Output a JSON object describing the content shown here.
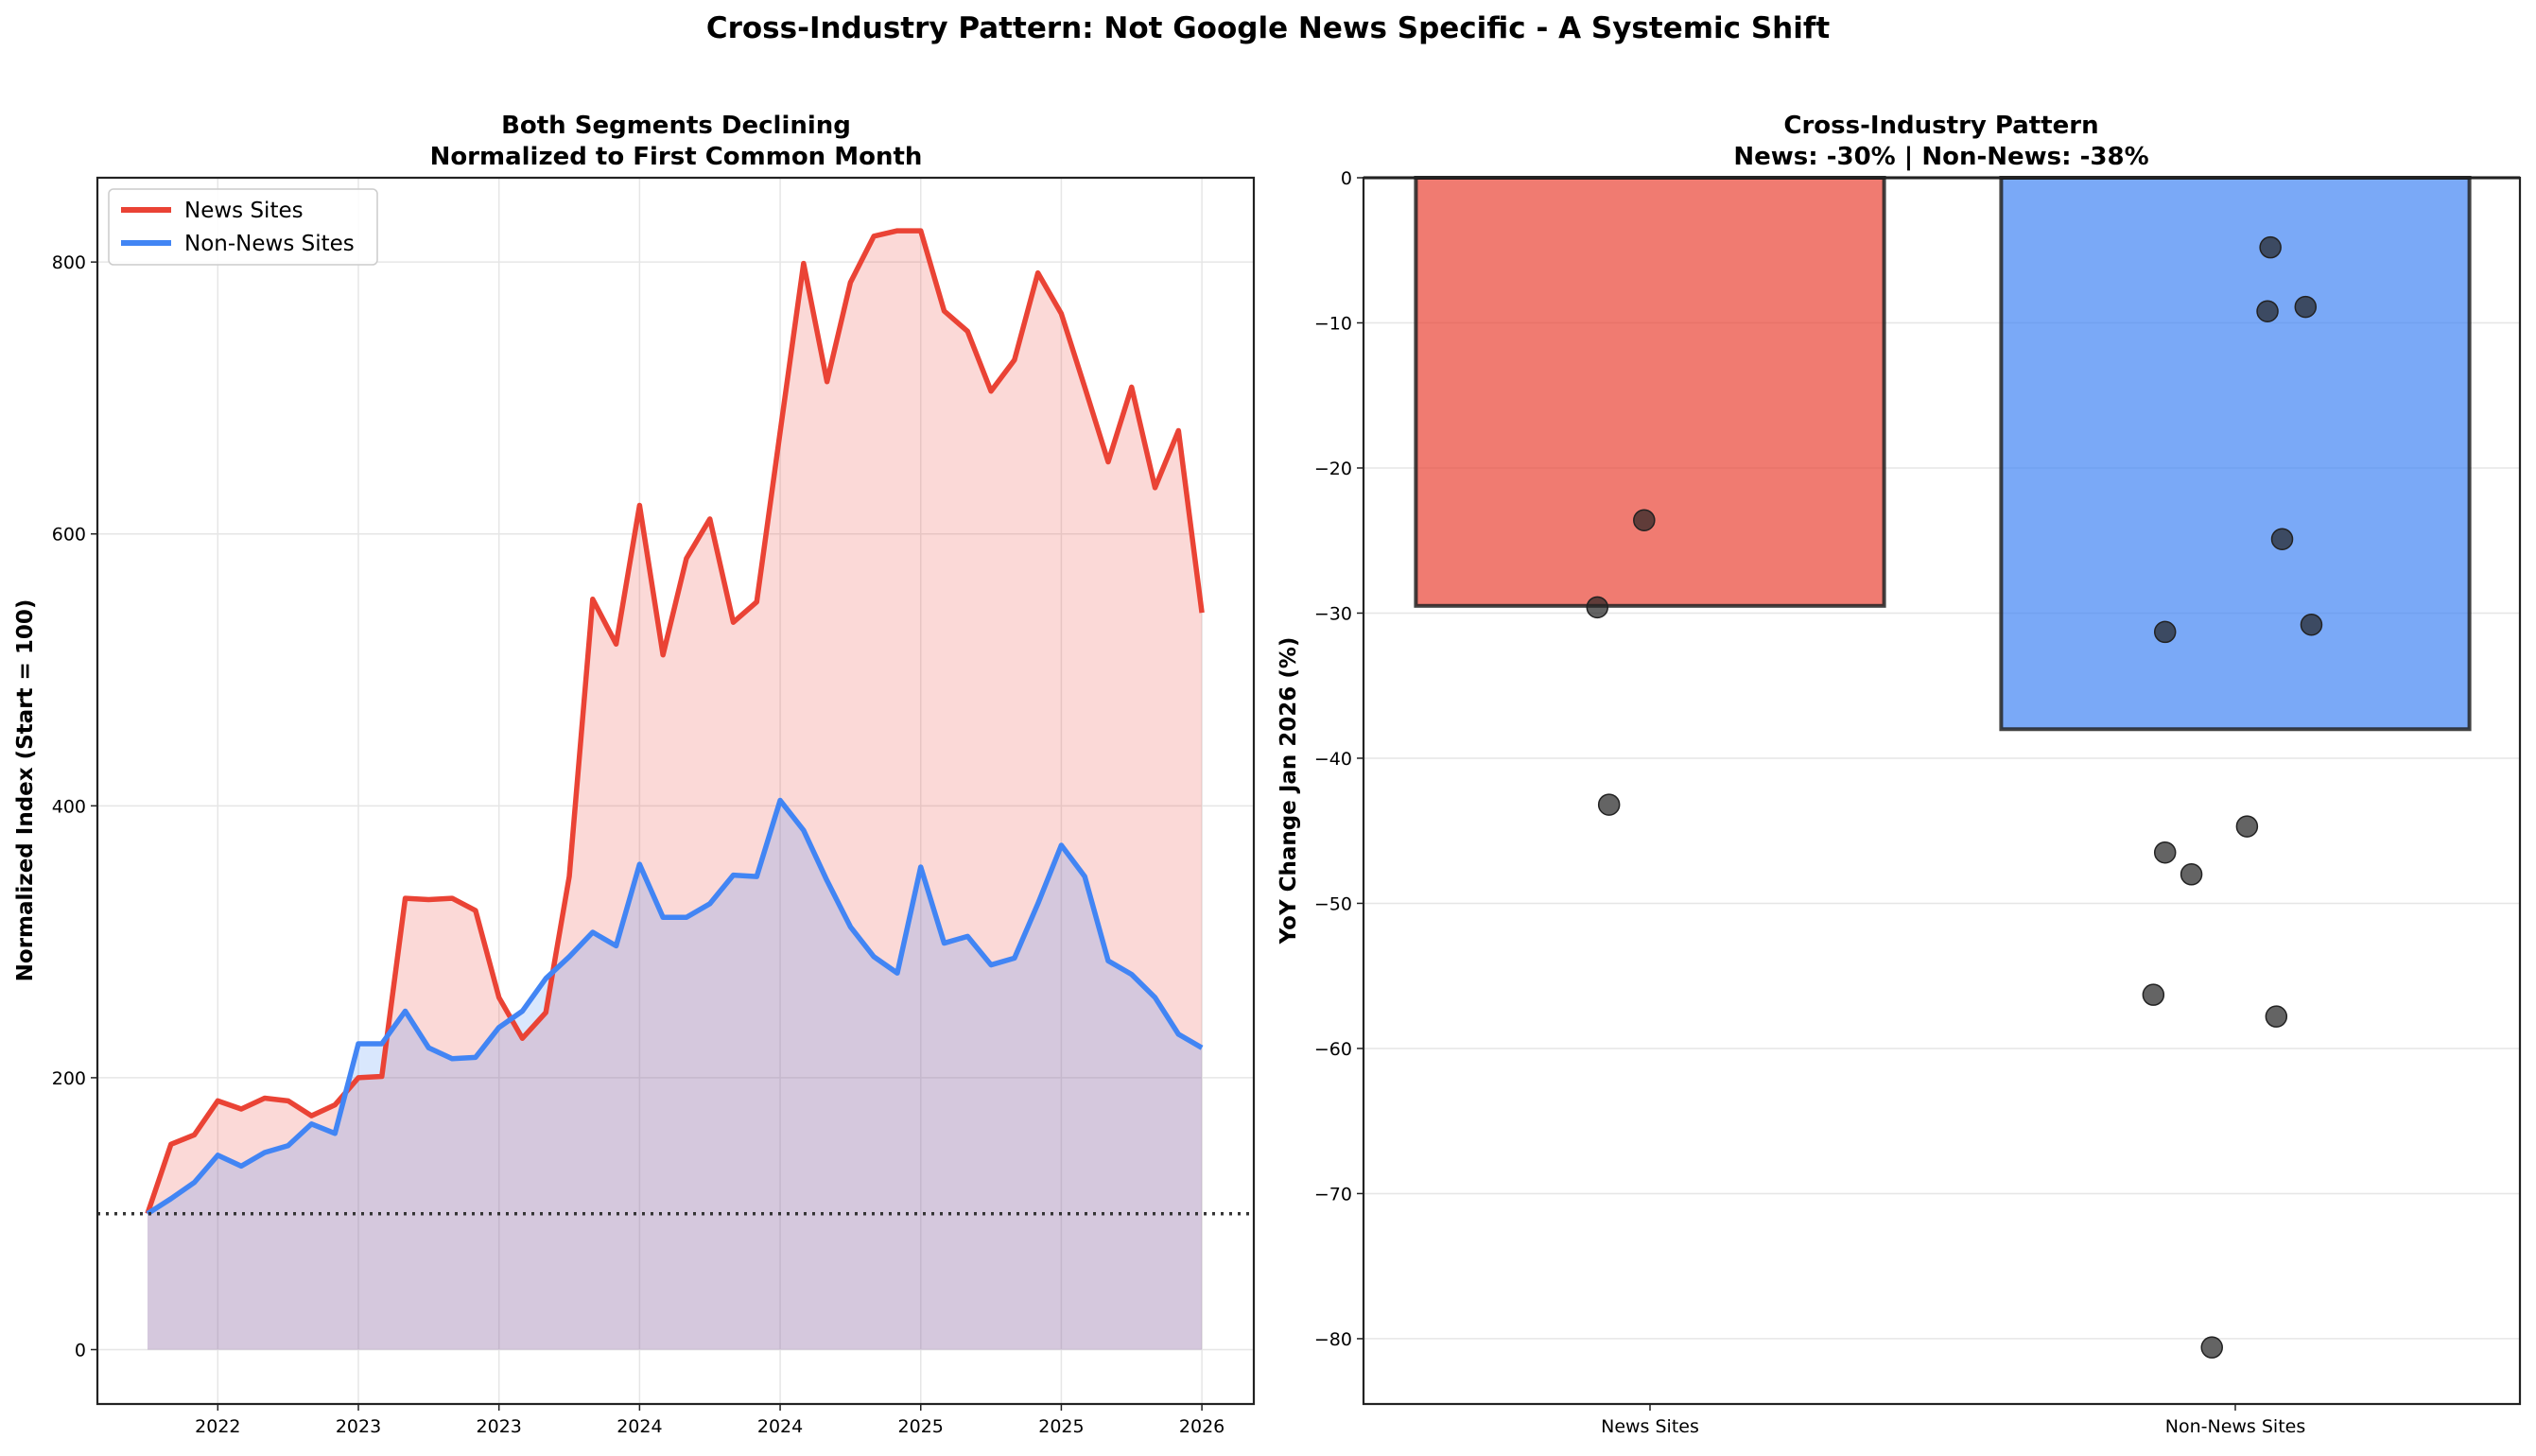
{
  "suptitle": "Cross-Industry Pattern: Not Google News Specific - A Systemic Shift",
  "chart_data": [
    {
      "type": "area",
      "title_line1": "Both Segments Declining",
      "title_line2": "Normalized to First Common Month",
      "xlabel": "",
      "ylabel": "Normalized Index (Start = 100)",
      "ylim": [
        -40,
        862
      ],
      "yticks": [
        0,
        200,
        400,
        600,
        800
      ],
      "xticks": [
        {
          "date": "2022-07",
          "label": "2022"
        },
        {
          "date": "2023-01",
          "label": "2023"
        },
        {
          "date": "2023-07",
          "label": "2023"
        },
        {
          "date": "2024-01",
          "label": "2024"
        },
        {
          "date": "2024-07",
          "label": "2024"
        },
        {
          "date": "2025-01",
          "label": "2025"
        },
        {
          "date": "2025-07",
          "label": "2025"
        },
        {
          "date": "2026-01",
          "label": "2026"
        }
      ],
      "grid": true,
      "legend_position": "top-left",
      "reference_line": 100,
      "x": [
        "2022-04",
        "2022-05",
        "2022-06",
        "2022-07",
        "2022-08",
        "2022-09",
        "2022-10",
        "2022-11",
        "2022-12",
        "2023-01",
        "2023-02",
        "2023-03",
        "2023-04",
        "2023-05",
        "2023-06",
        "2023-07",
        "2023-08",
        "2023-09",
        "2023-10",
        "2023-11",
        "2023-12",
        "2024-01",
        "2024-02",
        "2024-03",
        "2024-04",
        "2024-05",
        "2024-06",
        "2024-07",
        "2024-08",
        "2024-09",
        "2024-10",
        "2024-11",
        "2024-12",
        "2025-01",
        "2025-02",
        "2025-03",
        "2025-04",
        "2025-05",
        "2025-06",
        "2025-07",
        "2025-08",
        "2025-09",
        "2025-10",
        "2025-11",
        "2025-12",
        "2026-01"
      ],
      "series": [
        {
          "name": "News Sites",
          "color": "#ea4335",
          "values": [
            100,
            151,
            158,
            183,
            177,
            185,
            183,
            172,
            180,
            200,
            201,
            332,
            331,
            332,
            323,
            259,
            229,
            248,
            348,
            552,
            519,
            621,
            511,
            582,
            611,
            535,
            550,
            675,
            799,
            712,
            785,
            819,
            823,
            823,
            764,
            749,
            705,
            728,
            792,
            762,
            708,
            653,
            708,
            634,
            676,
            542
          ]
        },
        {
          "name": "Non-News Sites",
          "color": "#4285f4",
          "values": [
            100,
            111,
            123,
            143,
            135,
            145,
            150,
            166,
            159,
            225,
            225,
            249,
            222,
            214,
            215,
            237,
            249,
            273,
            289,
            307,
            297,
            357,
            318,
            318,
            328,
            349,
            348,
            404,
            382,
            345,
            311,
            289,
            277,
            355,
            299,
            304,
            283,
            288,
            328,
            371,
            348,
            286,
            276,
            259,
            232,
            222
          ]
        }
      ]
    },
    {
      "type": "bar",
      "title_line1": "Cross-Industry Pattern",
      "title_line2": "News: -30% | Non-News: -38%",
      "xlabel": "",
      "ylabel": "YoY Change Jan 2026 (%)",
      "ylim": [
        -84.5,
        0
      ],
      "yticks": [
        0,
        -10,
        -20,
        -30,
        -40,
        -50,
        -60,
        -70,
        -80
      ],
      "grid": true,
      "categories": [
        "News Sites",
        "Non-News Sites"
      ],
      "values": [
        -29.5,
        -38.0
      ],
      "colors": [
        "#ea4335",
        "#4285f4"
      ],
      "points": [
        [
          -23.6,
          -29.6,
          -43.2
        ],
        [
          -4.8,
          -9.2,
          -8.9,
          -24.9,
          -31.3,
          -30.8,
          -44.7,
          -46.5,
          -48.0,
          -56.3,
          -57.8,
          -80.6
        ]
      ]
    }
  ]
}
